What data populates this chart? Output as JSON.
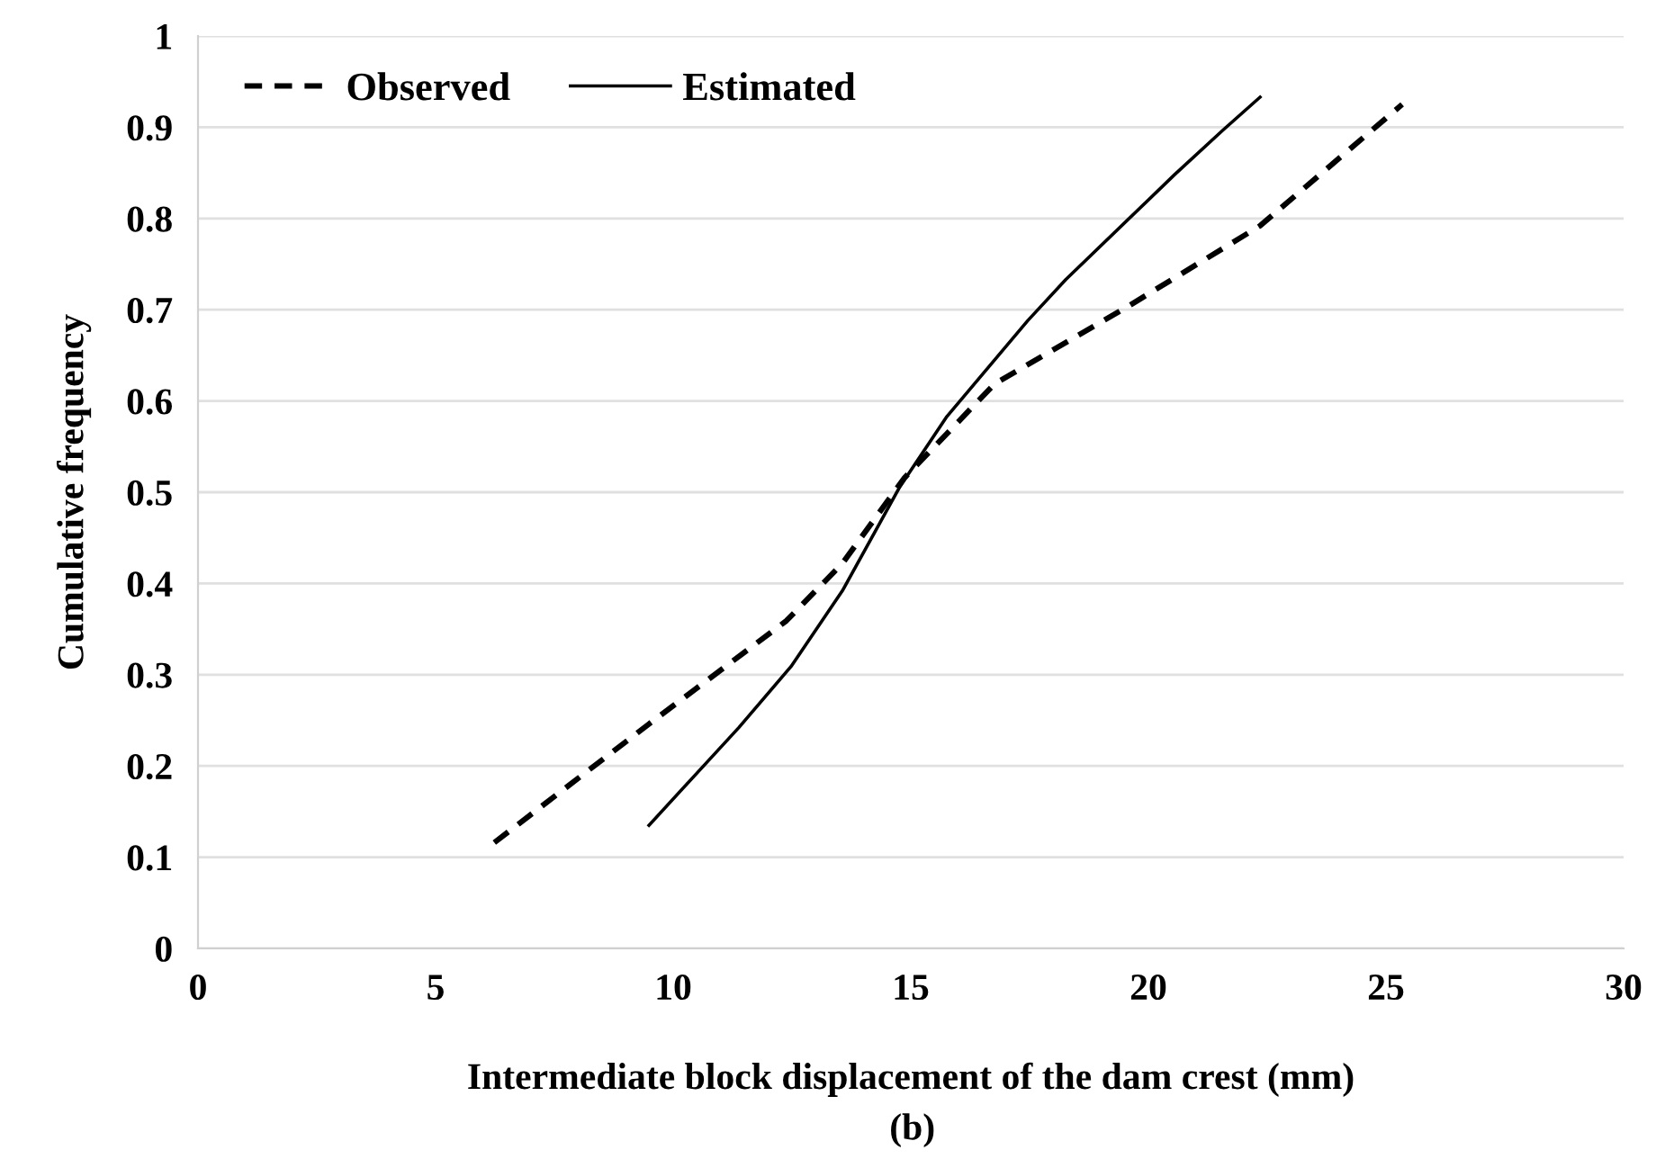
{
  "chart_data": {
    "type": "line",
    "xlabel": "Intermediate block displacement of the dam crest (mm)",
    "ylabel": "Cumulative frequency",
    "annotations": [
      "(b)"
    ],
    "xlim": [
      0,
      30
    ],
    "xticks": [
      0,
      5,
      10,
      15,
      20,
      25,
      30
    ],
    "ylim": [
      0,
      1
    ],
    "yticks": [
      0,
      0.1,
      0.2,
      0.3,
      0.4,
      0.5,
      0.6,
      0.7,
      0.8,
      0.9,
      1
    ],
    "grid": "y",
    "legend": "top left",
    "series": [
      {
        "name": "Observed",
        "color": "#000000",
        "line_style": "dashed",
        "x": [
          6.06,
          9.49,
          12.38,
          13.56,
          14.87,
          16.77,
          19.55,
          22.35,
          25.34
        ],
        "values": [
          0.109,
          0.246,
          0.359,
          0.422,
          0.516,
          0.619,
          0.703,
          0.792,
          0.925
        ]
      },
      {
        "name": "Estimated",
        "color": "#000000",
        "line_style": "solid",
        "x": [
          9.49,
          11.38,
          12.48,
          13.56,
          14.77,
          15.76,
          17.46,
          18.26,
          20.55,
          21.55,
          22.35
        ],
        "values": [
          0.135,
          0.242,
          0.309,
          0.392,
          0.506,
          0.583,
          0.688,
          0.733,
          0.848,
          0.896,
          0.933
        ]
      }
    ]
  }
}
